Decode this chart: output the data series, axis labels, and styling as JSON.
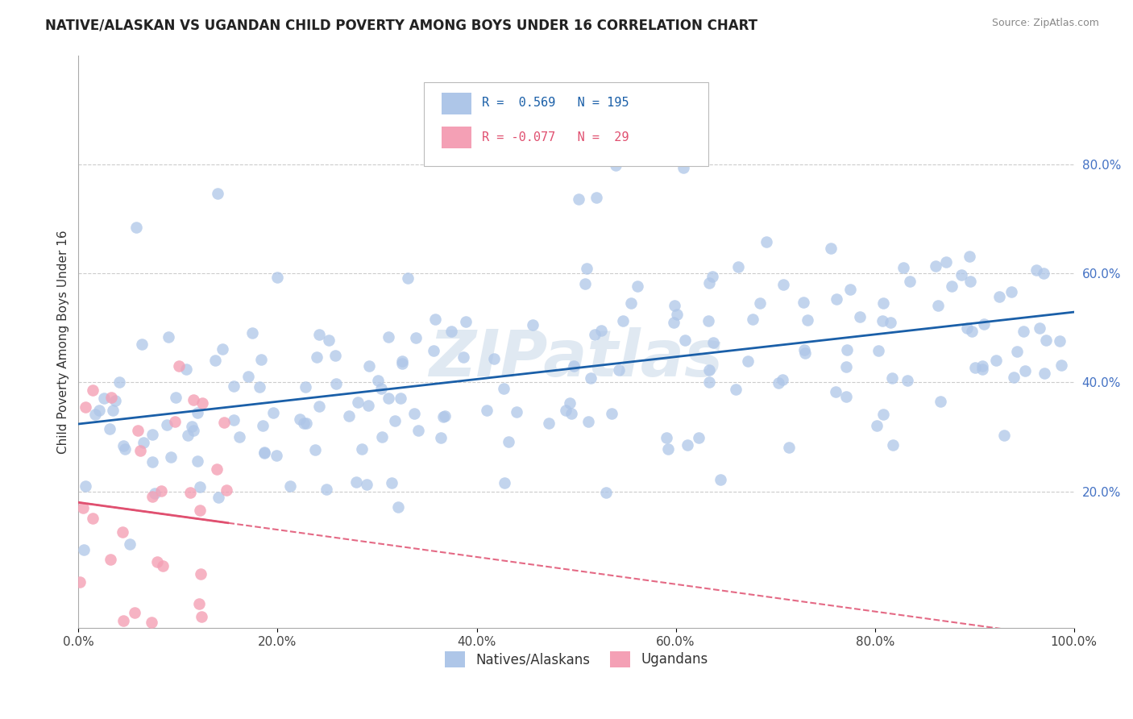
{
  "title": "NATIVE/ALASKAN VS UGANDAN CHILD POVERTY AMONG BOYS UNDER 16 CORRELATION CHART",
  "source": "Source: ZipAtlas.com",
  "ylabel": "Child Poverty Among Boys Under 16",
  "xlim": [
    0.0,
    1.0
  ],
  "ylim": [
    -0.05,
    1.0
  ],
  "xtick_labels": [
    "0.0%",
    "20.0%",
    "40.0%",
    "60.0%",
    "80.0%",
    "100.0%"
  ],
  "xtick_vals": [
    0.0,
    0.2,
    0.4,
    0.6,
    0.8,
    1.0
  ],
  "ytick_labels": [
    "20.0%",
    "40.0%",
    "60.0%",
    "80.0%"
  ],
  "ytick_vals": [
    0.2,
    0.4,
    0.6,
    0.8
  ],
  "blue_color": "#aec6e8",
  "pink_color": "#f4a0b5",
  "blue_line_color": "#1a5fa8",
  "pink_line_color": "#e05070",
  "legend_blue_r": "0.569",
  "legend_blue_n": "195",
  "legend_pink_r": "-0.077",
  "legend_pink_n": "29",
  "legend_label_blue": "Natives/Alaskans",
  "legend_label_pink": "Ugandans",
  "watermark": "ZIPatlas",
  "blue_r": 0.569,
  "pink_r": -0.077,
  "blue_n": 195,
  "pink_n": 29
}
